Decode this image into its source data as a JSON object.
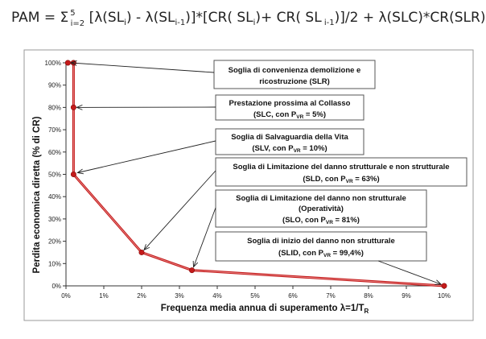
{
  "formula": {
    "lead": "PAM = ",
    "sigma": "Σ",
    "sigma_upper": "5",
    "sigma_lower": "i=2",
    "body_a": " [λ(SL",
    "sub_i": "i",
    "body_b": ") - λ(SL",
    "sub_im1": "i-1",
    "body_c": ")]*[CR( SL",
    "body_d": ")+ CR( SL",
    "sub_im1b": " i-1",
    "body_e": ")]/2 + λ(SLC)*CR(SLR)"
  },
  "chart_data": {
    "type": "line",
    "xlabel": "Frequenza media annua di superamento λ=1/T",
    "xlabel_sub": "R",
    "ylabel": "Perdita economica diretta (% di CR)",
    "xlim": [
      0,
      10
    ],
    "ylim": [
      0,
      100
    ],
    "x_ticks": [
      "0%",
      "1%",
      "2%",
      "3%",
      "4%",
      "5%",
      "6%",
      "7%",
      "8%",
      "9%",
      "10%"
    ],
    "y_ticks": [
      "0%",
      "10%",
      "20%",
      "30%",
      "40%",
      "50%",
      "60%",
      "70%",
      "80%",
      "90%",
      "100%"
    ],
    "grid": false,
    "line_color": "#c41a1a",
    "series": [
      {
        "points": [
          {
            "x": 0.05,
            "y": 100
          },
          {
            "x": 0.2,
            "y": 100
          },
          {
            "x": 0.2,
            "y": 80
          },
          {
            "x": 0.2,
            "y": 50
          },
          {
            "x": 2.0,
            "y": 15
          },
          {
            "x": 3.33,
            "y": 7
          },
          {
            "x": 10.0,
            "y": 0
          }
        ]
      }
    ],
    "annotations": [
      {
        "line1": "Soglia di convenienza demolizione e",
        "line2a": "ricostruzione (SLR)",
        "line2_sub": "",
        "line2b": "",
        "target_point": 0
      },
      {
        "line1": "Prestazione prossima al Collasso",
        "line2a": "(SLC, con P",
        "line2_sub": "VR",
        "line2b": " = 5%)",
        "target_point": 2
      },
      {
        "line1": "Soglia di Salvaguardia della Vita",
        "line2a": "(SLV, con P",
        "line2_sub": "VR",
        "line2b": " = 10%)",
        "target_point": 3
      },
      {
        "line1": "Soglia di Limitazione del danno strutturale e non strutturale",
        "line2a": "(SLD, con P",
        "line2_sub": "VR",
        "line2b": " = 63%)",
        "target_point": 4
      },
      {
        "line1": "Soglia di Limitazione del danno non strutturale",
        "line1b": "(Operatività)",
        "line2a": "(SLO, con P",
        "line2_sub": "VR",
        "line2b": " = 81%)",
        "target_point": 5
      },
      {
        "line1": "Soglia di inizio del danno non strutturale",
        "line2a": "(SLID, con P",
        "line2_sub": "VR",
        "line2b": " = 99,4%)",
        "target_point": 6
      }
    ]
  }
}
